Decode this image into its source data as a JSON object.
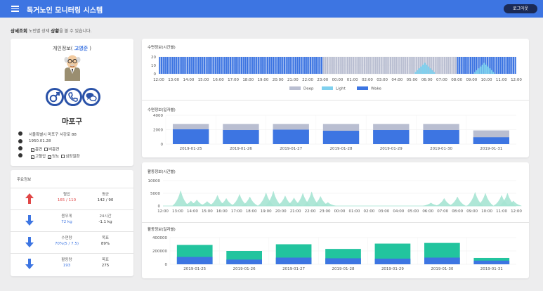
{
  "header": {
    "title": "독거노인 모니터링 시스템",
    "logout_label": "로그아웃"
  },
  "breadcrumb": {
    "bold": "상세조회",
    "middle": " 노인별 상세 ",
    "mid_bold": "상황",
    "rest": "을 볼 수 있습니다."
  },
  "profile": {
    "title_prefix": "개인정보( ",
    "name": "고영준",
    "title_suffix": " )",
    "district": "마포구",
    "address": "서울특별시 마포구 서강로 88",
    "birth": "1950.01.28",
    "habits": [
      "흡연",
      "비흡연"
    ],
    "habits_checked": [
      true,
      false
    ],
    "diseases": [
      "고혈압",
      "당뇨",
      "심장질환"
    ],
    "diseases_checked": [
      true,
      true,
      false
    ],
    "buttons": [
      "gender-male-icon",
      "phone-icon",
      "chat-icon"
    ]
  },
  "main_info": {
    "title": "주요정보",
    "rows": [
      {
        "direction": "up",
        "color": "#e04646",
        "left_label": "혈압",
        "left_value": "165 / 110",
        "left_color": "red",
        "right_label": "평균",
        "right_value": "142 / 90"
      },
      {
        "direction": "down",
        "color": "#3d75e2",
        "left_label": "몸무게",
        "left_value": "72 kg",
        "left_color": "blue",
        "right_label": "24시간",
        "right_value": "-1.1 kg"
      },
      {
        "direction": "down",
        "color": "#3d75e2",
        "left_label": "수면량",
        "left_value": "70%(5 / 7.5)",
        "left_color": "blue",
        "right_label": "목표",
        "right_value": "89%"
      },
      {
        "direction": "down",
        "color": "#3d75e2",
        "left_label": "활동량",
        "left_value": "193",
        "left_color": "blue",
        "right_label": "목표",
        "right_value": "275"
      }
    ]
  },
  "sections": {
    "sleep_hourly": "수면정보(시간별)",
    "sleep_daily": "수면정보(일자별)",
    "activity_hourly": "활동정보(시간별)",
    "activity_daily": "활동정보(일자별)"
  },
  "colors": {
    "deep": "#b9bed1",
    "light": "#7fd0ee",
    "wake": "#3d75e2",
    "activity": "#a6e4d3",
    "activity_total": "#22c49e",
    "accent": "#3d75e2"
  },
  "chart_data": [
    {
      "type": "bar",
      "title": "수면정보(시간별)",
      "x_ticks": [
        "12:00",
        "13:00",
        "14:00",
        "15:00",
        "16:00",
        "17:00",
        "18:00",
        "19:00",
        "20:00",
        "21:00",
        "22:00",
        "23:00",
        "00:00",
        "01:00",
        "02:00",
        "03:00",
        "04:00",
        "05:00",
        "06:00",
        "07:00",
        "08:00",
        "09:00",
        "10:00",
        "11:00",
        "12:00"
      ],
      "y_ticks": [
        "20",
        "10",
        "0"
      ],
      "ylim": [
        0,
        20
      ],
      "legend": [
        "Deep",
        "Light",
        "Wake"
      ],
      "legend_position": "bottom",
      "stages_by_hour": [
        "Wake",
        "Wake",
        "Wake",
        "Wake",
        "Wake",
        "Wake",
        "Wake",
        "Wake",
        "Wake",
        "Wake",
        "Wake",
        "Deep",
        "Deep",
        "Deep",
        "Deep",
        "Deep",
        "Deep",
        "Deep",
        "Deep",
        "Deep",
        "Wake",
        "Wake",
        "Wake",
        "Wake"
      ],
      "light_peaks_hours": [
        17.8,
        21.8
      ]
    },
    {
      "type": "bar",
      "title": "수면정보(일자별)",
      "categories": [
        "2019-01-25",
        "2019-01-26",
        "2019-01-27",
        "2019-01-28",
        "2019-01-29",
        "2019-01-30",
        "2019-01-31"
      ],
      "series": [
        {
          "values": [
            2050,
            1950,
            2000,
            1850,
            1950,
            1950,
            950
          ]
        },
        {
          "values": [
            2800,
            2800,
            2800,
            2800,
            2800,
            2800,
            1900
          ]
        }
      ],
      "y_ticks": [
        "4000",
        "2000",
        "0"
      ],
      "ylim": [
        0,
        4000
      ]
    },
    {
      "type": "area",
      "title": "활동정보(시간별)",
      "x_ticks": [
        "12:00",
        "13:00",
        "14:00",
        "15:00",
        "16:00",
        "17:00",
        "18:00",
        "19:00",
        "20:00",
        "21:00",
        "22:00",
        "23:00",
        "00:00",
        "01:00",
        "02:00",
        "03:00",
        "04:00",
        "05:00",
        "06:00",
        "07:00",
        "08:00",
        "09:00",
        "10:00",
        "11:00",
        "12:00"
      ],
      "y_ticks": [
        "10000",
        "5000",
        "0"
      ],
      "ylim": [
        0,
        10000
      ],
      "peaks": [
        {
          "x": 1.2,
          "y": 6000
        },
        {
          "x": 1.9,
          "y": 2000
        },
        {
          "x": 2.3,
          "y": 2400
        },
        {
          "x": 3.0,
          "y": 1800
        },
        {
          "x": 3.7,
          "y": 4200
        },
        {
          "x": 4.3,
          "y": 3000
        },
        {
          "x": 5.2,
          "y": 4600
        },
        {
          "x": 5.9,
          "y": 3600
        },
        {
          "x": 7.0,
          "y": 5200
        },
        {
          "x": 7.5,
          "y": 5800
        },
        {
          "x": 8.3,
          "y": 4000
        },
        {
          "x": 8.9,
          "y": 3200
        },
        {
          "x": 9.5,
          "y": 5000
        },
        {
          "x": 10.1,
          "y": 5600
        },
        {
          "x": 10.7,
          "y": 3800
        },
        {
          "x": 11.2,
          "y": 1400
        },
        {
          "x": 18.2,
          "y": 1200
        },
        {
          "x": 19.1,
          "y": 3000
        },
        {
          "x": 20.0,
          "y": 3600
        },
        {
          "x": 21.2,
          "y": 5400
        },
        {
          "x": 21.9,
          "y": 5000
        },
        {
          "x": 23.0,
          "y": 4200
        },
        {
          "x": 23.4,
          "y": 5000
        },
        {
          "x": 23.8,
          "y": 2000
        }
      ]
    },
    {
      "type": "bar",
      "title": "활동정보(일자별)",
      "categories": [
        "2019-01-25",
        "2019-01-26",
        "2019-01-27",
        "2019-01-28",
        "2019-01-29",
        "2019-01-30",
        "2019-01-31"
      ],
      "series": [
        {
          "values": [
            110000,
            70000,
            100000,
            90000,
            85000,
            100000,
            55000
          ]
        },
        {
          "values": [
            290000,
            200000,
            300000,
            230000,
            310000,
            320000,
            95000
          ]
        }
      ],
      "y_ticks": [
        "400000",
        "200000",
        "0"
      ],
      "ylim": [
        0,
        400000
      ]
    }
  ]
}
